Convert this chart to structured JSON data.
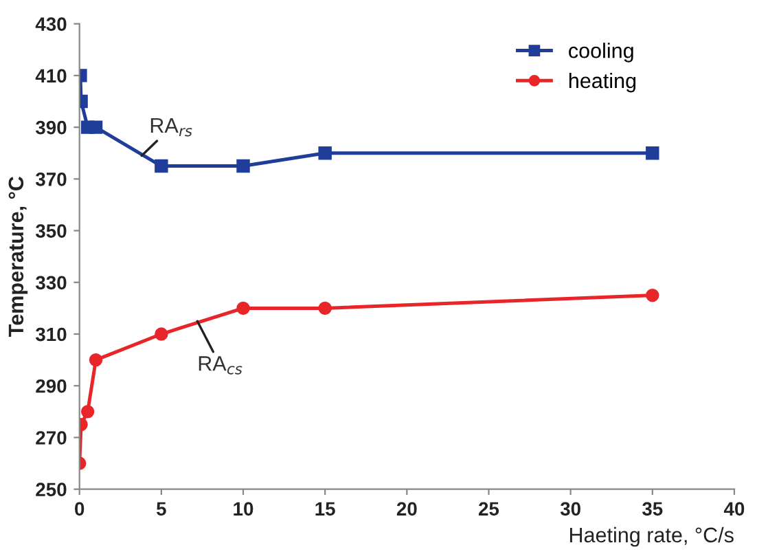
{
  "chart_data": {
    "type": "line",
    "xlabel": "Haeting rate, °C/s",
    "ylabel": "Temperature, °C",
    "xlim": [
      0,
      40
    ],
    "xticks": [
      0,
      5,
      10,
      15,
      20,
      25,
      30,
      35,
      40
    ],
    "ylim": [
      250,
      430
    ],
    "yticks": [
      250,
      270,
      290,
      310,
      330,
      350,
      370,
      390,
      410,
      430
    ],
    "grid": false,
    "legend": "top right",
    "series": [
      {
        "name": "cooling",
        "color": "#1f3d99",
        "marker": "square",
        "x": [
          0.05,
          0.1,
          0.5,
          1,
          5,
          10,
          15,
          35
        ],
        "values": [
          410,
          400,
          390,
          390,
          375,
          375,
          380,
          380
        ]
      },
      {
        "name": "heating",
        "color": "#e8262a",
        "marker": "circle",
        "x": [
          0,
          0.1,
          0.5,
          1,
          5,
          10,
          15,
          35
        ],
        "values": [
          260,
          275,
          280,
          300,
          310,
          320,
          320,
          325
        ]
      }
    ],
    "annotations": [
      {
        "text": "RA$_{rs}$",
        "x": 3.8,
        "y": 379
      },
      {
        "text": "RA$_{cs}$",
        "x": 7.2,
        "y": 315
      }
    ]
  }
}
